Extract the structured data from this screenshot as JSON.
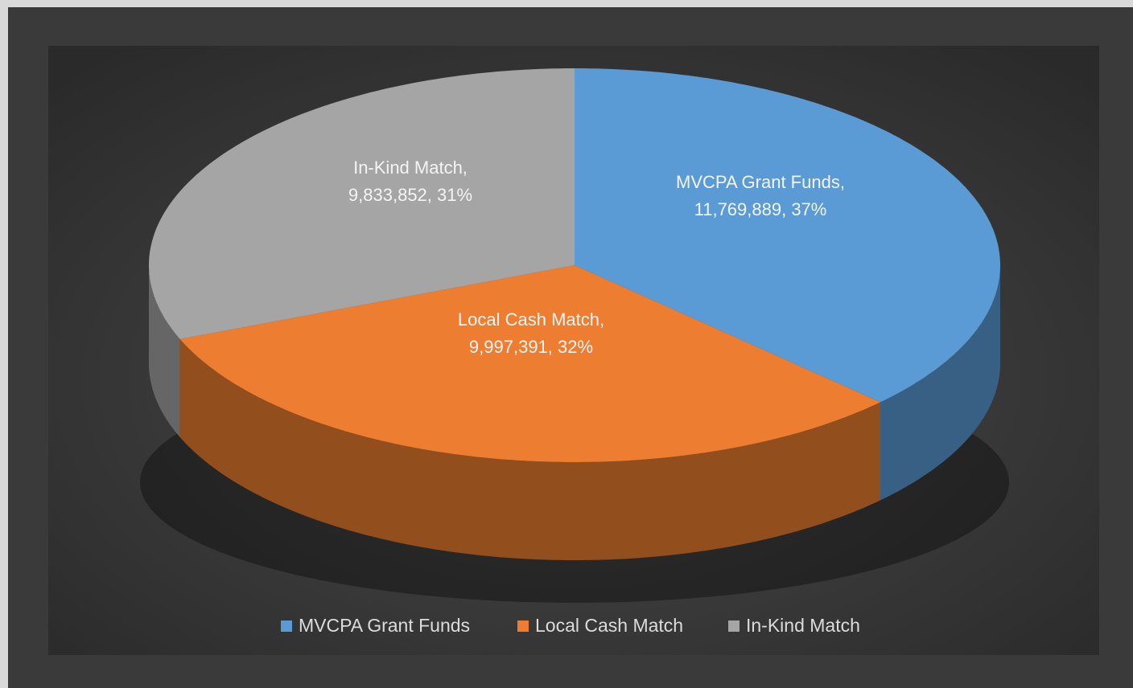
{
  "chart_data": {
    "type": "pie",
    "categories": [
      "MVCPA Grant Funds",
      "Local Cash Match",
      "In-Kind Match"
    ],
    "values": [
      11769889,
      9997391,
      9833852
    ],
    "value_labels": [
      [
        "MVCPA Grant Funds,",
        "11,769,889, 37%"
      ],
      [
        "Local Cash Match,",
        "9,997,391, 32%"
      ],
      [
        "In-Kind Match,",
        "9,833,852, 31%"
      ]
    ],
    "colors": [
      "#5b9bd5",
      "#ed7d31",
      "#a5a5a5"
    ],
    "legend": "bottom"
  }
}
